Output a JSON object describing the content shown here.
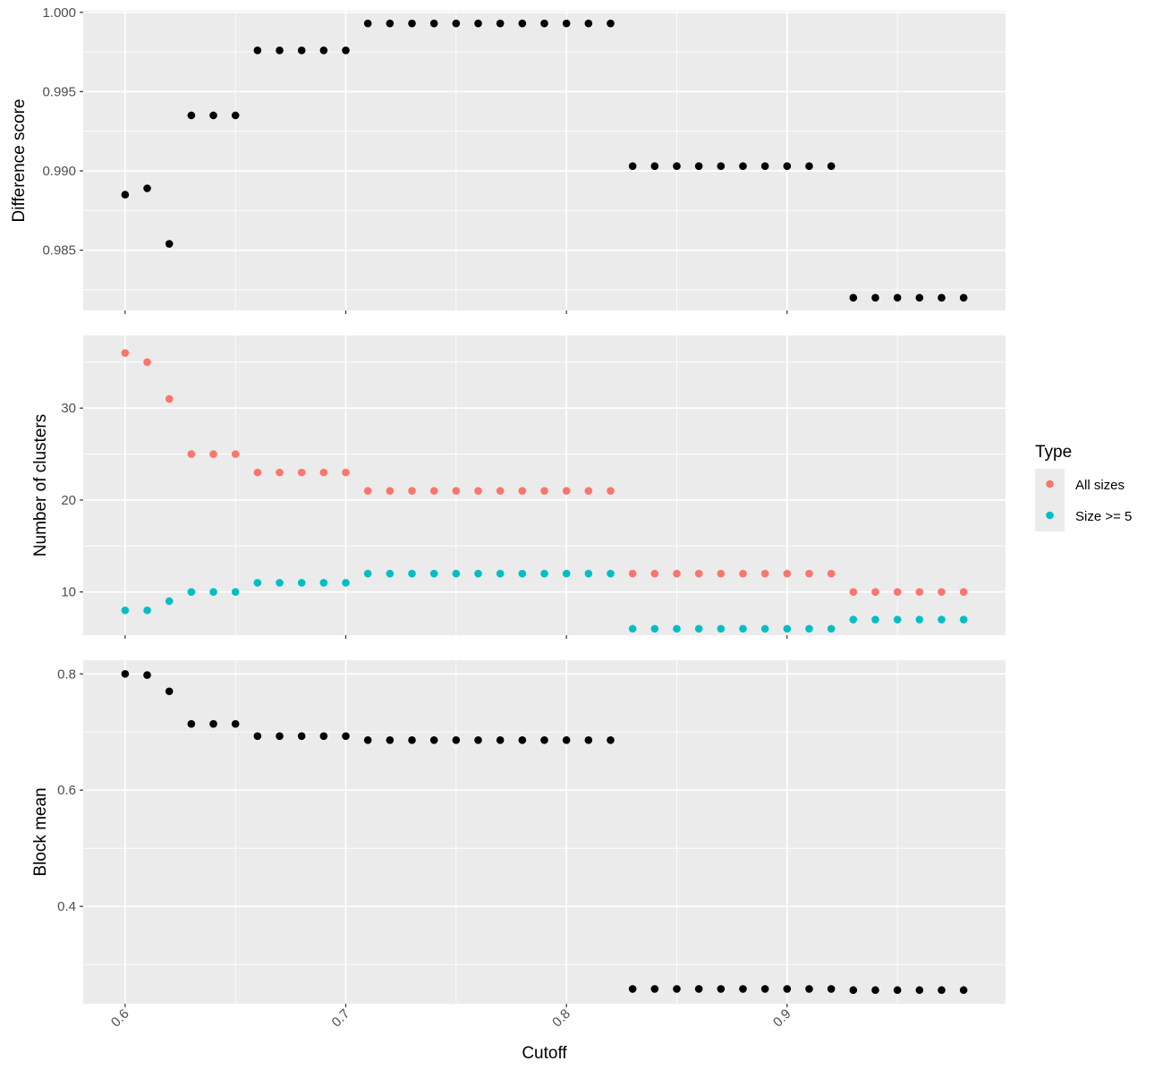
{
  "chart_data": [
    {
      "type": "scatter",
      "ylabel": "Difference score",
      "ylim": [
        0.9812,
        1.0001
      ],
      "yticks": [
        0.985,
        0.99,
        0.995,
        1.0
      ],
      "ytick_labels": [
        "0.985",
        "0.990",
        "0.995",
        "1.000"
      ],
      "grid": true,
      "series": [
        {
          "color": "#000000",
          "x": [
            0.6,
            0.61,
            0.62,
            0.63,
            0.64,
            0.65,
            0.66,
            0.67,
            0.68,
            0.69,
            0.7,
            0.71,
            0.72,
            0.73,
            0.74,
            0.75,
            0.76,
            0.77,
            0.78,
            0.79,
            0.8,
            0.81,
            0.82,
            0.83,
            0.84,
            0.85,
            0.86,
            0.87,
            0.88,
            0.89,
            0.9,
            0.91,
            0.92,
            0.93,
            0.94,
            0.95,
            0.96,
            0.97,
            0.98
          ],
          "y": [
            0.9885,
            0.9889,
            0.9854,
            0.9935,
            0.9935,
            0.9935,
            0.9976,
            0.9976,
            0.9976,
            0.9976,
            0.9976,
            0.9993,
            0.9993,
            0.9993,
            0.9993,
            0.9993,
            0.9993,
            0.9993,
            0.9993,
            0.9993,
            0.9993,
            0.9993,
            0.9993,
            0.9903,
            0.9903,
            0.9903,
            0.9903,
            0.9903,
            0.9903,
            0.9903,
            0.9903,
            0.9903,
            0.9903,
            0.982,
            0.982,
            0.982,
            0.982,
            0.982,
            0.982
          ]
        }
      ]
    },
    {
      "type": "scatter",
      "ylabel": "Number of clusters",
      "ylim": [
        5.3,
        37.9
      ],
      "yticks": [
        10,
        20,
        30
      ],
      "ytick_labels": [
        "10",
        "20",
        "30"
      ],
      "grid": true,
      "legend": {
        "title": "Type",
        "placement": "right",
        "entries": [
          "All sizes",
          "Size >= 5"
        ]
      },
      "series": [
        {
          "name": "All sizes",
          "color": "#F8766D",
          "x": [
            0.6,
            0.61,
            0.62,
            0.63,
            0.64,
            0.65,
            0.66,
            0.67,
            0.68,
            0.69,
            0.7,
            0.71,
            0.72,
            0.73,
            0.74,
            0.75,
            0.76,
            0.77,
            0.78,
            0.79,
            0.8,
            0.81,
            0.82,
            0.83,
            0.84,
            0.85,
            0.86,
            0.87,
            0.88,
            0.89,
            0.9,
            0.91,
            0.92,
            0.93,
            0.94,
            0.95,
            0.96,
            0.97,
            0.98
          ],
          "y": [
            36,
            35,
            31,
            25,
            25,
            25,
            23,
            23,
            23,
            23,
            23,
            21,
            21,
            21,
            21,
            21,
            21,
            21,
            21,
            21,
            21,
            21,
            21,
            12,
            12,
            12,
            12,
            12,
            12,
            12,
            12,
            12,
            12,
            10,
            10,
            10,
            10,
            10,
            10
          ]
        },
        {
          "name": "Size >= 5",
          "color": "#00BFC4",
          "x": [
            0.6,
            0.61,
            0.62,
            0.63,
            0.64,
            0.65,
            0.66,
            0.67,
            0.68,
            0.69,
            0.7,
            0.71,
            0.72,
            0.73,
            0.74,
            0.75,
            0.76,
            0.77,
            0.78,
            0.79,
            0.8,
            0.81,
            0.82,
            0.83,
            0.84,
            0.85,
            0.86,
            0.87,
            0.88,
            0.89,
            0.9,
            0.91,
            0.92,
            0.93,
            0.94,
            0.95,
            0.96,
            0.97,
            0.98
          ],
          "y": [
            8,
            8,
            9,
            10,
            10,
            10,
            11,
            11,
            11,
            11,
            11,
            12,
            12,
            12,
            12,
            12,
            12,
            12,
            12,
            12,
            12,
            12,
            12,
            6,
            6,
            6,
            6,
            6,
            6,
            6,
            6,
            6,
            6,
            7,
            7,
            7,
            7,
            7,
            7
          ]
        }
      ]
    },
    {
      "type": "scatter",
      "ylabel": "Block mean",
      "xlabel": "Cutoff",
      "ylim": [
        0.2325,
        0.8235
      ],
      "yticks": [
        0.4,
        0.6,
        0.8
      ],
      "ytick_labels": [
        "0.4",
        "0.6",
        "0.8"
      ],
      "xlim": [
        0.581,
        0.999
      ],
      "xticks": [
        0.6,
        0.7,
        0.8,
        0.9
      ],
      "xtick_labels": [
        "0.6",
        "0.7",
        "0.8",
        "0.9"
      ],
      "grid": true,
      "series": [
        {
          "color": "#000000",
          "x": [
            0.6,
            0.61,
            0.62,
            0.63,
            0.64,
            0.65,
            0.66,
            0.67,
            0.68,
            0.69,
            0.7,
            0.71,
            0.72,
            0.73,
            0.74,
            0.75,
            0.76,
            0.77,
            0.78,
            0.79,
            0.8,
            0.81,
            0.82,
            0.83,
            0.84,
            0.85,
            0.86,
            0.87,
            0.88,
            0.89,
            0.9,
            0.91,
            0.92,
            0.93,
            0.94,
            0.95,
            0.96,
            0.97,
            0.98
          ],
          "y": [
            0.8,
            0.798,
            0.77,
            0.714,
            0.714,
            0.714,
            0.693,
            0.693,
            0.693,
            0.693,
            0.693,
            0.686,
            0.686,
            0.686,
            0.686,
            0.686,
            0.686,
            0.686,
            0.686,
            0.686,
            0.686,
            0.686,
            0.686,
            0.258,
            0.258,
            0.258,
            0.258,
            0.258,
            0.258,
            0.258,
            0.258,
            0.258,
            0.258,
            0.256,
            0.256,
            0.256,
            0.256,
            0.256,
            0.256
          ]
        }
      ]
    }
  ]
}
